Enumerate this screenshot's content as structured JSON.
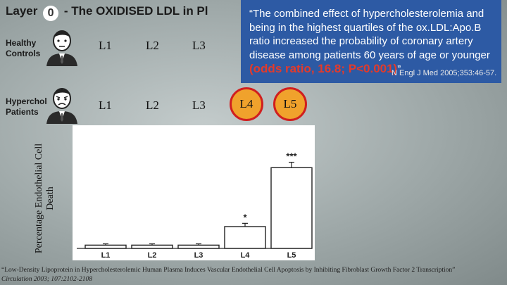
{
  "slide": {
    "title_prefix": "Layer",
    "title_badge": "0",
    "title_main": "- The OXIDISED LDL in Pl",
    "groups": [
      {
        "label_line1": "Healthy",
        "label_line2": "Controls",
        "icon": "person-calm-icon"
      },
      {
        "label_line1": "Hypercholesterolemic",
        "label_display": "Hyperchol",
        "label_line2": "Patients",
        "icon": "person-sad-icon"
      }
    ],
    "healthy_levels": [
      "L1",
      "L2",
      "L3"
    ],
    "patient_levels": [
      "L1",
      "L2",
      "L3",
      "L4",
      "L5"
    ],
    "highlight_color": "#f0a22c",
    "quote": {
      "text": "“The combined effect of hypercholesterolemia and being in the highest quartiles of the ox.LDL:Apo.B ratio increased the probability of coronary artery disease among patients 60 years of age or younger",
      "highlight": "(odds ratio, 16.8; P<0.001)",
      "closing": "”",
      "reference": "N Engl J Med 2005;353:46-57.",
      "bg_color": "#2d5aa4"
    },
    "citation_line1": "“Low-Density Lipoprotein in Hypercholesterolemic Human Plasma Induces Vascular Endothelial Cell Apoptosis by Inhibiting Fibroblast Growth Factor 2 Transcription”",
    "citation_line2": "Circulation 2003; 107:2102-2108"
  },
  "chart_data": {
    "type": "bar",
    "categories": [
      "L1",
      "L2",
      "L3",
      "L4",
      "L5"
    ],
    "values": [
      1.5,
      1.5,
      1.5,
      10,
      37
    ],
    "errors": [
      0.6,
      0.6,
      0.6,
      1.5,
      2.5
    ],
    "significance": [
      "",
      "",
      "",
      "*",
      "***"
    ],
    "ylabel": "Percentage Endothelial Cell Death",
    "ylim": [
      0,
      50
    ],
    "grid": false
  }
}
